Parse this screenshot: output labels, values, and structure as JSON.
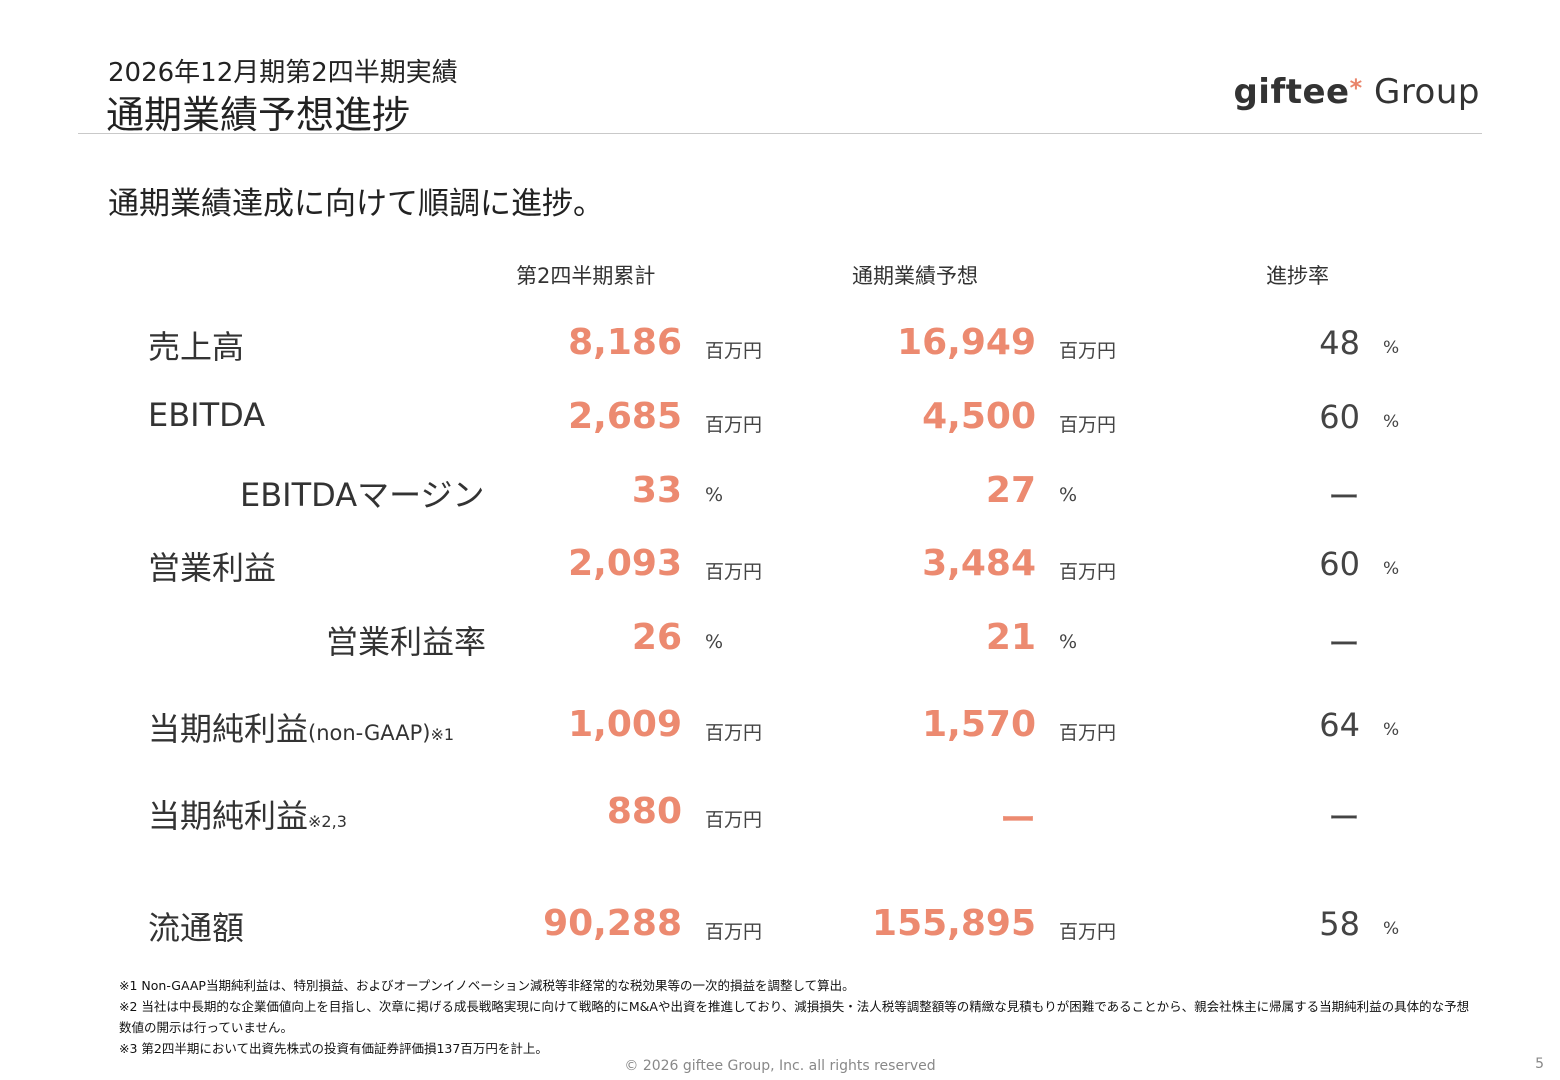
{
  "header": {
    "subtitle": "2026年12月期第2四半期実績",
    "title": "通期業績予想進捗",
    "logo_text": "giftee",
    "logo_star": "*",
    "logo_group": " Group"
  },
  "lead": "通期業績達成に向けて順調に進捗。",
  "columns": {
    "cumulative": "第2四半期累計",
    "forecast": "通期業績予想",
    "progress": "進捗率"
  },
  "rows": [
    {
      "label": "売上高",
      "paren": "",
      "note": "",
      "v1": "8,186",
      "u1": "百万円",
      "v2": "16,949",
      "u2": "百万円",
      "rate": "48",
      "pct": "%"
    },
    {
      "label": "EBITDA",
      "paren": "",
      "note": "",
      "v1": "2,685",
      "u1": "百万円",
      "v2": "4,500",
      "u2": "百万円",
      "rate": "60",
      "pct": "%"
    },
    {
      "label": "EBITDAマージン",
      "paren": "",
      "note": "",
      "v1": "33",
      "u1": "%",
      "v2": "27",
      "u2": "%",
      "rate": "ー",
      "pct": ""
    },
    {
      "label": "営業利益",
      "paren": "",
      "note": "",
      "v1": "2,093",
      "u1": "百万円",
      "v2": "3,484",
      "u2": "百万円",
      "rate": "60",
      "pct": "%"
    },
    {
      "label": "営業利益率",
      "paren": "",
      "note": "",
      "v1": "26",
      "u1": "%",
      "v2": "21",
      "u2": "%",
      "rate": "ー",
      "pct": ""
    },
    {
      "label": "当期純利益",
      "paren": "(non-GAAP)",
      "note": "※1",
      "v1": "1,009",
      "u1": "百万円",
      "v2": "1,570",
      "u2": "百万円",
      "rate": "64",
      "pct": "%"
    },
    {
      "label": "当期純利益",
      "paren": "",
      "note": "※2,3",
      "v1": "880",
      "u1": "百万円",
      "v2": "ー",
      "u2": "",
      "rate": "ー",
      "pct": ""
    },
    {
      "label": "流通額",
      "paren": "",
      "note": "",
      "v1": "90,288",
      "u1": "百万円",
      "v2": "155,895",
      "u2": "百万円",
      "rate": "58",
      "pct": "%"
    }
  ],
  "footnotes": [
    "※1 Non-GAAP当期純利益は、特別損益、およびオープンイノベーション減税等非経常的な税効果等の一次的損益を調整して算出。",
    "※2 当社は中長期的な企業価値向上を目指し、次章に掲げる成長戦略実現に向けて戦略的にM&Aや出資を推進しており、減損損失・法人税等調整額等の精緻な見積もりが困難であることから、親会社株主に帰属する当期純利益の具体的な予想数値の開示は行っていません。",
    "※3 第2四半期において出資先株式の投資有価証券評価損137百万円を計上。"
  ],
  "copyright": "© 2026 giftee Group, Inc. all rights reserved",
  "page_number": "5",
  "colors": {
    "accent": "#ec8a70",
    "text": "#333333"
  }
}
